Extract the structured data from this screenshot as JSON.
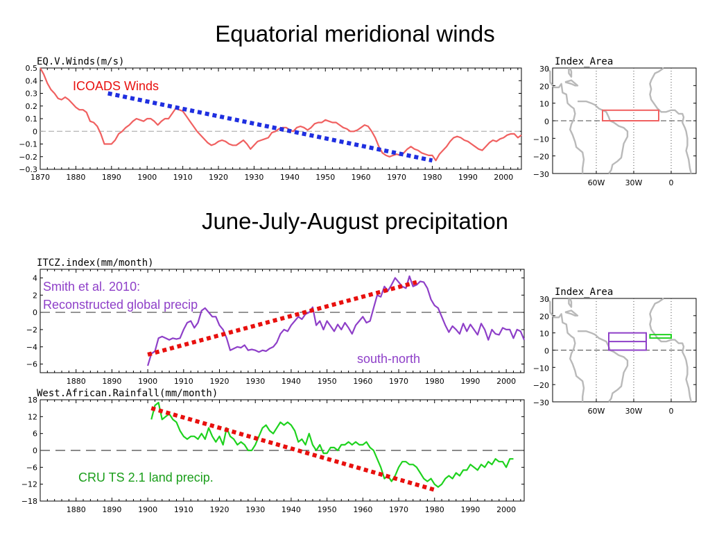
{
  "titles": {
    "top": "Equatorial meridional winds",
    "bottom": "June-July-August precipitation"
  },
  "colors": {
    "winds": "#f06060",
    "trend": "#1f2fe0",
    "itcz": "#8e3fc8",
    "rain": "#1ed21e",
    "red_trend": "#e8100e",
    "map_land": "#b9b9b9"
  },
  "maps": [
    {
      "title": "Index_Area",
      "yticks": [
        "30",
        "20",
        "10",
        "0",
        "−10",
        "−20",
        "−30"
      ],
      "xticks": [
        "60W",
        "30W",
        "0"
      ],
      "boxes": [
        {
          "color": "#f06060",
          "lon": [
            -55,
            -10
          ],
          "lat": [
            0,
            6
          ]
        }
      ]
    },
    {
      "title": "Index_Area",
      "yticks": [
        "30",
        "20",
        "10",
        "0",
        "−10",
        "−20",
        "−30"
      ],
      "xticks": [
        "60W",
        "30W",
        "0"
      ],
      "boxes": [
        {
          "color": "#8e3fc8",
          "lon": [
            -50,
            -20
          ],
          "lat": [
            0,
            10
          ]
        },
        {
          "color": "#8e3fc8",
          "lon": [
            -50,
            -20
          ],
          "lat": [
            5,
            5
          ]
        },
        {
          "color": "#1ed21e",
          "lon": [
            -17,
            0
          ],
          "lat": [
            7,
            9
          ]
        }
      ]
    }
  ],
  "chart_data": [
    {
      "type": "line",
      "title": "EQ.V.Winds(m/s)",
      "xlim": [
        1870,
        2005
      ],
      "ylim": [
        -0.3,
        0.5
      ],
      "xticks": [
        1870,
        1880,
        1890,
        1900,
        1910,
        1920,
        1930,
        1940,
        1950,
        1960,
        1970,
        1980,
        1990,
        2000
      ],
      "yticks": [
        "0.5",
        "0.4",
        "0.3",
        "0.2",
        "0.1",
        "0",
        "−0.1",
        "−0.2",
        "−0.3"
      ],
      "ytick_values": [
        0.5,
        0.4,
        0.3,
        0.2,
        0.1,
        0,
        -0.1,
        -0.2,
        -0.3
      ],
      "zero_line": 0,
      "annotation": "ICOADS Winds",
      "series": [
        {
          "color": "#f06060",
          "x": [
            1870,
            1871,
            1872,
            1873,
            1874,
            1875,
            1876,
            1877,
            1878,
            1879,
            1880,
            1881,
            1882,
            1883,
            1884,
            1885,
            1886,
            1887,
            1888,
            1889,
            1890,
            1891,
            1892,
            1893,
            1894,
            1895,
            1896,
            1897,
            1898,
            1899,
            1900,
            1901,
            1902,
            1903,
            1904,
            1905,
            1906,
            1907,
            1908,
            1909,
            1910,
            1911,
            1912,
            1913,
            1914,
            1915,
            1916,
            1917,
            1918,
            1919,
            1920,
            1921,
            1922,
            1923,
            1924,
            1925,
            1926,
            1927,
            1928,
            1929,
            1930,
            1931,
            1932,
            1933,
            1934,
            1935,
            1936,
            1937,
            1938,
            1939,
            1940,
            1941,
            1942,
            1943,
            1944,
            1945,
            1946,
            1947,
            1948,
            1949,
            1950,
            1951,
            1952,
            1953,
            1954,
            1955,
            1956,
            1957,
            1958,
            1959,
            1960,
            1961,
            1962,
            1963,
            1964,
            1965,
            1966,
            1967,
            1968,
            1969,
            1970,
            1971,
            1972,
            1973,
            1974,
            1975,
            1976,
            1977,
            1978,
            1979,
            1980,
            1981,
            1982,
            1983,
            1984,
            1985,
            1986,
            1987,
            1988,
            1989,
            1990,
            1991,
            1992,
            1993,
            1994,
            1995,
            1996,
            1997,
            1998,
            1999,
            2000,
            2001,
            2002,
            2003,
            2004,
            2005
          ],
          "y": [
            0.5,
            0.45,
            0.38,
            0.33,
            0.3,
            0.26,
            0.25,
            0.27,
            0.25,
            0.22,
            0.19,
            0.17,
            0.17,
            0.15,
            0.08,
            0.07,
            0.04,
            -0.02,
            -0.1,
            -0.1,
            -0.1,
            -0.07,
            -0.02,
            0.0,
            0.03,
            0.05,
            0.08,
            0.1,
            0.09,
            0.08,
            0.1,
            0.1,
            0.08,
            0.05,
            0.08,
            0.1,
            0.1,
            0.14,
            0.18,
            0.17,
            0.16,
            0.12,
            0.08,
            0.04,
            0.0,
            -0.03,
            -0.06,
            -0.09,
            -0.11,
            -0.1,
            -0.08,
            -0.07,
            -0.08,
            -0.1,
            -0.11,
            -0.11,
            -0.09,
            -0.07,
            -0.1,
            -0.14,
            -0.11,
            -0.08,
            -0.07,
            -0.06,
            -0.05,
            -0.01,
            0.0,
            0.02,
            0.03,
            0.03,
            0.01,
            0.0,
            0.03,
            0.04,
            0.03,
            0.01,
            0.03,
            0.06,
            0.07,
            0.07,
            0.09,
            0.08,
            0.07,
            0.07,
            0.05,
            0.03,
            0.02,
            0.0,
            0.0,
            0.01,
            0.03,
            0.05,
            0.04,
            0.0,
            -0.05,
            -0.12,
            -0.17,
            -0.19,
            -0.2,
            -0.19,
            -0.18,
            -0.19,
            -0.17,
            -0.14,
            -0.12,
            -0.14,
            -0.15,
            -0.17,
            -0.18,
            -0.19,
            -0.19,
            -0.23,
            -0.18,
            -0.15,
            -0.12,
            -0.08,
            -0.05,
            -0.04,
            -0.05,
            -0.07,
            -0.08,
            -0.1,
            -0.12,
            -0.14,
            -0.15,
            -0.12,
            -0.09,
            -0.07,
            -0.08,
            -0.06,
            -0.05,
            -0.03,
            -0.02,
            -0.02,
            -0.05,
            -0.03
          ]
        }
      ],
      "trend": {
        "color": "#1f2fe0",
        "x": [
          1889,
          1980
        ],
        "y": [
          0.3,
          -0.23
        ]
      }
    },
    {
      "type": "line",
      "title": "ITCZ.index(mm/month)",
      "xlim": [
        1870,
        2005
      ],
      "ylim": [
        -7,
        5
      ],
      "xticks": [
        1880,
        1890,
        1900,
        1910,
        1920,
        1930,
        1940,
        1950,
        1960,
        1970,
        1980,
        1990,
        2000
      ],
      "yticks": [
        "4",
        "2",
        "0",
        "−2",
        "−4",
        "−6"
      ],
      "ytick_values": [
        4,
        2,
        0,
        -2,
        -4,
        -6
      ],
      "zero_line": 0,
      "annotation": "Smith et al. 2010:",
      "annotation2": "Reconstructed global precip",
      "annotation3": "south-north",
      "series": [
        {
          "color": "#8e3fc8",
          "x": [
            1900,
            1901,
            1902,
            1903,
            1904,
            1905,
            1906,
            1907,
            1908,
            1909,
            1910,
            1911,
            1912,
            1913,
            1914,
            1915,
            1916,
            1917,
            1918,
            1919,
            1920,
            1921,
            1922,
            1923,
            1924,
            1925,
            1926,
            1927,
            1928,
            1929,
            1930,
            1931,
            1932,
            1933,
            1934,
            1935,
            1936,
            1937,
            1938,
            1939,
            1940,
            1941,
            1942,
            1943,
            1944,
            1945,
            1946,
            1947,
            1948,
            1949,
            1950,
            1951,
            1952,
            1953,
            1954,
            1955,
            1956,
            1957,
            1958,
            1959,
            1960,
            1961,
            1962,
            1963,
            1964,
            1965,
            1966,
            1967,
            1968,
            1969,
            1970,
            1971,
            1972,
            1973,
            1974,
            1975,
            1976,
            1977,
            1978,
            1979,
            1980,
            1981,
            1982,
            1983,
            1984,
            1985,
            1986,
            1987,
            1988,
            1989,
            1990,
            1991,
            1992,
            1993,
            1994,
            1995,
            1996,
            1997,
            1998,
            1999,
            2000,
            2001,
            2002,
            2003,
            2004,
            2005
          ],
          "y": [
            -6.2,
            -4.8,
            -4.5,
            -3.0,
            -2.8,
            -3.0,
            -3.2,
            -3.0,
            -3.1,
            -3.0,
            -2.0,
            -1.2,
            -1.0,
            -1.8,
            -1.2,
            0.2,
            0.5,
            0.0,
            -0.5,
            -0.5,
            -1.5,
            -2.0,
            -3.0,
            -4.4,
            -4.2,
            -4.0,
            -4.1,
            -3.8,
            -4.4,
            -4.3,
            -4.4,
            -4.6,
            -4.4,
            -4.5,
            -4.2,
            -4.0,
            -3.5,
            -2.5,
            -2.0,
            -2.2,
            -1.5,
            -1.0,
            -0.5,
            -0.8,
            -0.2,
            0.0,
            0.6,
            -1.5,
            -1.0,
            -2.0,
            -1.0,
            -1.6,
            -2.2,
            -1.4,
            -2.0,
            -1.2,
            -1.8,
            -2.5,
            -1.5,
            -1.0,
            -0.5,
            -1.2,
            -1.0,
            0.5,
            2.0,
            1.8,
            3.0,
            2.5,
            3.2,
            4.0,
            3.5,
            3.0,
            2.8,
            4.2,
            3.0,
            3.2,
            3.6,
            3.5,
            2.8,
            1.5,
            0.8,
            0.5,
            -0.5,
            -1.5,
            -2.3,
            -1.6,
            -2.0,
            -2.5,
            -1.3,
            -2.2,
            -1.4,
            -2.0,
            -2.6,
            -1.3,
            -2.0,
            -3.2,
            -2.0,
            -2.5,
            -2.6,
            -1.8,
            -2.0,
            -2.0,
            -3.0,
            -2.0,
            -2.2,
            -3.2
          ]
        }
      ],
      "trend": {
        "color": "#e8100e",
        "x": [
          1900,
          1975
        ],
        "y": [
          -4.9,
          3.5
        ]
      }
    },
    {
      "type": "line",
      "title": "West.African.Rainfall(mm/month)",
      "xlim": [
        1870,
        2005
      ],
      "ylim": [
        -18,
        18
      ],
      "xticks": [
        1880,
        1890,
        1900,
        1910,
        1920,
        1930,
        1940,
        1950,
        1960,
        1970,
        1980,
        1990,
        2000
      ],
      "yticks": [
        "18",
        "12",
        "6",
        "0",
        "−6",
        "−12",
        "−18"
      ],
      "ytick_values": [
        18,
        12,
        6,
        0,
        -6,
        -12,
        -18
      ],
      "zero_line": 0,
      "annotation": "CRU TS 2.1 land precip.",
      "series": [
        {
          "color": "#1ed21e",
          "x": [
            1901,
            1902,
            1903,
            1904,
            1905,
            1906,
            1907,
            1908,
            1909,
            1910,
            1911,
            1912,
            1913,
            1914,
            1915,
            1916,
            1917,
            1918,
            1919,
            1920,
            1921,
            1922,
            1923,
            1924,
            1925,
            1926,
            1927,
            1928,
            1929,
            1930,
            1931,
            1932,
            1933,
            1934,
            1935,
            1936,
            1937,
            1938,
            1939,
            1940,
            1941,
            1942,
            1943,
            1944,
            1945,
            1946,
            1947,
            1948,
            1949,
            1950,
            1951,
            1952,
            1953,
            1954,
            1955,
            1956,
            1957,
            1958,
            1959,
            1960,
            1961,
            1962,
            1963,
            1964,
            1965,
            1966,
            1967,
            1968,
            1969,
            1970,
            1971,
            1972,
            1973,
            1974,
            1975,
            1976,
            1977,
            1978,
            1979,
            1980,
            1981,
            1982,
            1983,
            1984,
            1985,
            1986,
            1987,
            1988,
            1989,
            1990,
            1991,
            1992,
            1993,
            1994,
            1995,
            1996,
            1997,
            1998,
            1999,
            2000,
            2001,
            2002
          ],
          "y": [
            11,
            16,
            17,
            11,
            12,
            13,
            11,
            10,
            7,
            5,
            4,
            5,
            5,
            4,
            6,
            4,
            8,
            5,
            3,
            5,
            2,
            8,
            5,
            4,
            2,
            3,
            2,
            0,
            0,
            2,
            5,
            8,
            9,
            7,
            6,
            8,
            10,
            9,
            10,
            9,
            7,
            3,
            4,
            2,
            6,
            2,
            0,
            2,
            -1,
            -1,
            1,
            1,
            0,
            2,
            2,
            3,
            2,
            3,
            2,
            2,
            3,
            1,
            0,
            -3,
            -6,
            -10,
            -9,
            -11,
            -9,
            -6,
            -4,
            -4,
            -5,
            -5,
            -6,
            -8,
            -10,
            -11,
            -10,
            -12,
            -13,
            -12,
            -10,
            -9,
            -10,
            -8,
            -9,
            -7,
            -7,
            -5,
            -6,
            -7,
            -5,
            -6,
            -4,
            -5,
            -3,
            -4,
            -4,
            -6,
            -3,
            -3
          ]
        }
      ],
      "trend": {
        "color": "#e8100e",
        "x": [
          1901,
          1980
        ],
        "y": [
          15,
          -14
        ]
      }
    }
  ]
}
